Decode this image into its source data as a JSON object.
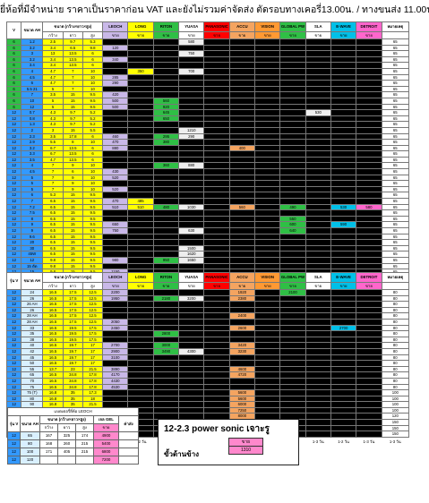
{
  "title": "ยี่ห้อที่มีจำหน่าย  ราคาเป็นราคาก่อน VAT และยังไม่รวมค่าจัดส่ง  ตัดรอบทางเคอรี่13.00น. / ทางขนส่ง 11.00น. ของทุกวัน",
  "brands": [
    "LEOCH",
    "LONG",
    "RITON",
    "YUASA",
    "PANASONIC",
    "ACCU",
    "VISION",
    "GLOBAL PW",
    "SLA",
    "E-WAVE",
    "DETROIT",
    "หมายเหตุ"
  ],
  "brand_colors": [
    "#c9b8e8",
    "#ffff00",
    "#2fbf45",
    "#ffffff",
    "#ff0000",
    "#f4a460",
    "#ff9933",
    "#2fbf45",
    "#ffffff",
    "#00c0e8",
    "#ff66cc",
    "#ffffff"
  ],
  "section1": {
    "head_v": "V",
    "head_ah": "ขนาด AH",
    "head_dim": "ขนาด (กว้าง×ยาว×สูง)",
    "head_price": "ราคา/ลูก",
    "sub_labels": [
      "กว้าง",
      "ยาว",
      "สูง"
    ],
    "unit_label": "ขาย",
    "rows": [
      [
        "6",
        "1.2",
        "2.5",
        "9.7",
        "5.3",
        "",
        "",
        "",
        "580",
        "",
        "",
        "",
        "",
        "",
        "",
        "",
        "65"
      ],
      [
        "6",
        "3.2",
        "3.4",
        "6.5",
        "9.8",
        "120",
        "",
        "",
        "",
        "",
        "",
        "",
        "",
        "",
        "",
        "",
        "65"
      ],
      [
        "6",
        "3",
        "13",
        "13.5",
        "6",
        "",
        "",
        "",
        "750",
        "",
        "",
        "",
        "",
        "",
        "",
        "",
        "65"
      ],
      [
        "6",
        "3.2",
        "3.4",
        "13.5",
        "6",
        "340",
        "",
        "",
        "",
        "",
        "",
        "",
        "",
        "",
        "",
        "",
        "65"
      ],
      [
        "6",
        "3.4",
        "3.4",
        "13.5",
        "6",
        "",
        "",
        "",
        "",
        "",
        "",
        "",
        "",
        "",
        "",
        "",
        "65"
      ],
      [
        "6",
        "4",
        "4.7",
        "7",
        "10",
        "",
        "350",
        "",
        "700",
        "",
        "",
        "",
        "",
        "",
        "",
        "",
        "65"
      ],
      [
        "6",
        "4.5",
        "4.7",
        "7",
        "10",
        "285",
        "",
        "",
        "",
        "",
        "",
        "",
        "",
        "",
        "",
        "",
        "65"
      ],
      [
        "6",
        "6",
        "4.7",
        "7",
        "10",
        "290",
        "",
        "",
        "",
        "",
        "",
        "",
        "",
        "",
        "",
        "",
        "65"
      ],
      [
        "6",
        "5.5 21",
        "5",
        "7",
        "10",
        "",
        "",
        "",
        "",
        "",
        "",
        "",
        "",
        "",
        "",
        "",
        "65"
      ],
      [
        "6",
        "7",
        "3.5",
        "15",
        "9.5",
        "420",
        "",
        "",
        "",
        "",
        "",
        "",
        "",
        "",
        "",
        "",
        "65"
      ],
      [
        "6",
        "10",
        "5",
        "15",
        "9.5",
        "500",
        "",
        "560",
        "",
        "",
        "",
        "",
        "",
        "",
        "",
        "",
        "65"
      ],
      [
        "6",
        "12",
        "5",
        "15",
        "9.5",
        "500",
        "",
        "920",
        "",
        "",
        "",
        "",
        "",
        "",
        "",
        "",
        "65"
      ],
      [
        "12",
        "0.7",
        "4.3",
        "9.7",
        "5.2",
        "",
        "",
        "645",
        "",
        "",
        "",
        "",
        "",
        "530",
        "",
        "",
        "65"
      ],
      [
        "12",
        "0.8",
        "4.3",
        "9.7",
        "5.2",
        "",
        "",
        "650",
        "",
        "",
        "",
        "",
        "",
        "",
        "",
        "",
        "65"
      ],
      [
        "12",
        "1.3",
        "4.3",
        "9.7",
        "5.2",
        "",
        "",
        "",
        "",
        "",
        "",
        "",
        "",
        "",
        "",
        "",
        "65"
      ],
      [
        "12",
        "2",
        "3",
        "15",
        "5.5",
        "",
        "",
        "",
        "1210",
        "",
        "",
        "",
        "",
        "",
        "",
        "",
        "65"
      ],
      [
        "12",
        "2.3",
        "3.5",
        "17.8",
        "6",
        "460",
        "",
        "295",
        "290",
        "",
        "",
        "",
        "",
        "",
        "",
        "",
        "65"
      ],
      [
        "12",
        "2.9",
        "5.5",
        "8",
        "10",
        "470",
        "",
        "380",
        "",
        "",
        "",
        "",
        "",
        "",
        "",
        "",
        "65"
      ],
      [
        "12",
        "3.2",
        "6.7",
        "13.5",
        "6",
        "880",
        "",
        "",
        "",
        "",
        "400",
        "",
        "",
        "",
        "",
        "",
        "65"
      ],
      [
        "12",
        "3.3",
        "6.7",
        "13.5",
        "6",
        "",
        "",
        "",
        "",
        "",
        "",
        "",
        "",
        "",
        "",
        "",
        "65"
      ],
      [
        "12",
        "3.5",
        "4.7",
        "13.5",
        "6",
        "",
        "",
        "",
        "",
        "",
        "",
        "",
        "",
        "",
        "",
        "",
        "65"
      ],
      [
        "12",
        "4",
        "7",
        "9",
        "10",
        "",
        "",
        "360",
        "880",
        "",
        "",
        "",
        "",
        "",
        "",
        "",
        "65"
      ],
      [
        "12",
        "4.5",
        "7",
        "6",
        "10",
        "430",
        "",
        "",
        "",
        "",
        "",
        "",
        "",
        "",
        "",
        "",
        "65"
      ],
      [
        "12",
        "5",
        "7",
        "9",
        "10",
        "520",
        "",
        "",
        "",
        "",
        "",
        "",
        "",
        "",
        "",
        "",
        "65"
      ],
      [
        "12",
        "5",
        "7",
        "9",
        "10",
        "",
        "",
        "",
        "",
        "",
        "",
        "",
        "",
        "",
        "",
        "",
        "65"
      ],
      [
        "12",
        "5",
        "7",
        "9",
        "10",
        "520",
        "",
        "",
        "",
        "",
        "",
        "",
        "",
        "",
        "",
        "",
        "65"
      ],
      [
        "12",
        "6",
        "5.3",
        "15",
        "9.5",
        "",
        "",
        "",
        "",
        "",
        "",
        "",
        "",
        "",
        "",
        "",
        "65"
      ],
      [
        "12",
        "7",
        "6.5",
        "15",
        "9.5",
        "470",
        "485",
        "",
        "",
        "",
        "",
        "",
        "",
        "",
        "",
        "",
        "65"
      ],
      [
        "12",
        "7.2",
        "6.5",
        "15",
        "9.5",
        "510",
        "510",
        "480",
        "1030",
        "",
        "560",
        "",
        "490",
        "",
        "530",
        "580",
        "65"
      ],
      [
        "12",
        "7.5",
        "6.5",
        "15",
        "9.5",
        "",
        "",
        "",
        "",
        "",
        "",
        "",
        "",
        "",
        "",
        "",
        "65"
      ],
      [
        "12",
        "8",
        "6.5",
        "15",
        "9.5",
        "",
        "",
        "",
        "",
        "",
        "",
        "",
        "550",
        "",
        "",
        "",
        "65"
      ],
      [
        "12",
        "9",
        "6.5",
        "15",
        "9.5",
        "650",
        "",
        "",
        "",
        "",
        "",
        "",
        "600",
        "",
        "590",
        "",
        "65"
      ],
      [
        "12",
        "9",
        "6.5",
        "15",
        "9.5",
        "750",
        "",
        "",
        "630",
        "",
        "",
        "",
        "640",
        "",
        "",
        "",
        "65"
      ],
      [
        "12",
        "9.6",
        "6.5",
        "15",
        "9.5",
        "",
        "",
        "",
        "",
        "",
        "",
        "",
        "",
        "",
        "",
        "",
        "65"
      ],
      [
        "12",
        "20",
        "6.5",
        "15",
        "9.5",
        "",
        "",
        "",
        "",
        "",
        "",
        "",
        "",
        "",
        "",
        "",
        "65"
      ],
      [
        "12",
        "30",
        "6.5",
        "15",
        "9.5",
        "",
        "",
        "",
        "1500",
        "",
        "",
        "",
        "",
        "",
        "",
        "",
        "65"
      ],
      [
        "12",
        "45W",
        "6.5",
        "15",
        "9.5",
        "",
        "",
        "",
        "1620",
        "",
        "",
        "",
        "",
        "",
        "",
        "",
        "65"
      ],
      [
        "12",
        "12",
        "9.8",
        "15",
        "9.5",
        "980",
        "",
        "950",
        "1650",
        "",
        "",
        "",
        "",
        "",
        "",
        "",
        "65"
      ],
      [
        "12",
        "15 ตัด",
        "9.8",
        "15",
        "9.5",
        "",
        "",
        "",
        "",
        "",
        "",
        "",
        "",
        "",
        "",
        "",
        "65"
      ],
      [
        "12",
        "15",
        "9.8",
        "15",
        "9.5",
        "1150",
        "",
        "",
        "",
        "",
        "",
        "",
        "",
        "",
        "",
        "",
        "65"
      ],
      [
        "12",
        "17",
        "7.5",
        "18",
        "16.7",
        "1220",
        "",
        "",
        "",
        "",
        "1380",
        "",
        "",
        "",
        "",
        "",
        "65"
      ],
      [
        "12",
        "17 (2.3)",
        "7.5",
        "18",
        "16.7",
        "1350",
        "",
        "",
        "",
        "",
        "",
        "",
        "",
        "",
        "",
        "",
        "65"
      ],
      [
        "12",
        "18",
        "7.5",
        "18",
        "16.7",
        "1270",
        "1290",
        "",
        "",
        "",
        "",
        "",
        "1400",
        "",
        "",
        "",
        "65"
      ],
      [
        "12",
        "20",
        "7.5",
        "18",
        "16.7",
        "1250",
        "",
        "",
        "",
        "",
        "",
        "",
        "1480",
        "",
        "",
        "",
        "65"
      ],
      [
        "12",
        "22",
        "7.5",
        "18",
        "16.7",
        "",
        "",
        "",
        "",
        "",
        "",
        "",
        "1590",
        "",
        "",
        "",
        "65"
      ],
      [
        "12",
        "24",
        "7.5",
        "18",
        "16.7",
        "",
        "",
        "",
        "",
        "",
        "",
        "",
        "",
        "",
        "",
        "",
        "65"
      ]
    ]
  },
  "section2": {
    "head_v": "รุ่น V",
    "head_ah": "ขนาด AH",
    "head_dim": "ขนาด (กว้าง×ยาว×สูง)",
    "rows": [
      [
        "12",
        "24",
        "16.5",
        "17.5",
        "12.5",
        "2200",
        "",
        "",
        "",
        "",
        "1920",
        "",
        "2100",
        "",
        "",
        "",
        "80"
      ],
      [
        "12",
        "26",
        "16.5",
        "17.5",
        "12.5",
        "1950",
        "",
        "2180",
        "3200",
        "",
        "2380",
        "",
        "",
        "",
        "",
        "",
        "80"
      ],
      [
        "12",
        "26 AH",
        "16.5",
        "17.5",
        "12.5",
        "",
        "",
        "",
        "",
        "",
        "",
        "",
        "",
        "",
        "",
        "",
        "80"
      ],
      [
        "12",
        "26",
        "16.5",
        "17.5",
        "12.5",
        "",
        "",
        "",
        "",
        "",
        "",
        "",
        "",
        "",
        "",
        "",
        "80"
      ],
      [
        "12",
        "28 AH",
        "16.5",
        "17.5",
        "12.5",
        "",
        "",
        "",
        "",
        "",
        "2400",
        "",
        "",
        "",
        "",
        "",
        "80"
      ],
      [
        "12",
        "28 AH",
        "16.5",
        "17.5",
        "12.5",
        "2050",
        "",
        "",
        "",
        "",
        "",
        "",
        "",
        "",
        "",
        "",
        "80"
      ],
      [
        "12",
        "33",
        "16.5",
        "19.5",
        "17.5",
        "2450",
        "",
        "",
        "",
        "",
        "2600",
        "",
        "",
        "",
        "2700",
        "",
        "80"
      ],
      [
        "12",
        "35",
        "16.5",
        "19.5",
        "17.5",
        "",
        "",
        "2800",
        "",
        "",
        "",
        "",
        "",
        "",
        "",
        "",
        "80"
      ],
      [
        "12",
        "38",
        "16.5",
        "19.5",
        "17.5",
        "",
        "",
        "",
        "",
        "",
        "",
        "",
        "",
        "",
        "",
        "",
        "80"
      ],
      [
        "12",
        "40",
        "16.5",
        "19.7",
        "17",
        "2700",
        "",
        "3000",
        "",
        "",
        "3420",
        "",
        "",
        "",
        "",
        "",
        "80"
      ],
      [
        "12",
        "42",
        "16.5",
        "19.7",
        "17",
        "2900",
        "",
        "3490",
        "4300",
        "",
        "3230",
        "",
        "",
        "",
        "",
        "",
        "80"
      ],
      [
        "12",
        "45",
        "16.5",
        "19.7",
        "17",
        "3100",
        "",
        "",
        "",
        "",
        "",
        "",
        "",
        "",
        "",
        "",
        "80"
      ],
      [
        "12",
        "50",
        "16.5",
        "19.7",
        "17",
        "",
        "",
        "",
        "",
        "",
        "",
        "",
        "",
        "",
        "",
        "",
        "80"
      ],
      [
        "12",
        "55",
        "13.7",
        "23",
        "21.5",
        "3890",
        "",
        "",
        "",
        "",
        "4600",
        "",
        "",
        "",
        "",
        "",
        "80"
      ],
      [
        "12",
        "65",
        "16.5",
        "34.8",
        "17.8",
        "4170",
        "",
        "",
        "",
        "",
        "4720",
        "",
        "",
        "",
        "",
        "",
        "80"
      ],
      [
        "12",
        "70",
        "16.5",
        "34.8",
        "17.8",
        "4430",
        "",
        "",
        "",
        "",
        "",
        "",
        "",
        "",
        "",
        "",
        "80"
      ],
      [
        "12",
        "75",
        "16.5",
        "34.8",
        "17.8",
        "4530",
        "",
        "",
        "",
        "",
        "",
        "",
        "",
        "",
        "",
        "",
        "80"
      ],
      [
        "12",
        "75 (T)",
        "16.8",
        "35",
        "17.3",
        "",
        "",
        "",
        "",
        "",
        "5600",
        "",
        "",
        "",
        "",
        "",
        "100"
      ],
      [
        "12",
        "80",
        "16.8",
        "35",
        "18",
        "",
        "",
        "",
        "",
        "",
        "5600",
        "",
        "",
        "",
        "",
        "",
        "100"
      ],
      [
        "12",
        "90",
        "16.8",
        "35",
        "21.5",
        "",
        "",
        "",
        "",
        "",
        "6000",
        "",
        "",
        "",
        "",
        "",
        "100"
      ],
      [
        "12",
        "100",
        "17.1",
        "41",
        "21.1",
        "7150",
        "",
        "",
        "",
        "",
        "7250",
        "",
        "",
        "",
        "",
        "",
        "100"
      ],
      [
        "12",
        "120",
        "17.5",
        "41",
        "21.5",
        "",
        "",
        "",
        "",
        "",
        "8000",
        "",
        "",
        "",
        "",
        "",
        "120"
      ],
      [
        "12",
        "150",
        "17.1",
        "48",
        "24",
        "8470",
        "",
        "",
        "",
        "",
        "",
        "",
        "",
        "",
        "",
        "",
        "150"
      ],
      [
        "12",
        "200",
        "24",
        "52",
        "22",
        "12900",
        "",
        "",
        "",
        "",
        "",
        "",
        "",
        "",
        "",
        "",
        "150"
      ],
      [
        "12",
        "230",
        "24",
        "52",
        "20.5",
        "",
        "",
        "",
        "",
        "14500",
        "",
        "",
        "",
        "",
        "",
        "",
        "150"
      ]
    ]
  },
  "footer": {
    "label": "ระยะเวลาส่งของ และ ผลิต",
    "times": [
      "1-2 วัน",
      "1-2 วัน",
      "1-2 วัน",
      "1-2 วัน",
      "1-3 วัน",
      "1-3 วัน",
      "1-3 วัน",
      "1-3 วัน",
      "1-3 วัน",
      "1-2 วัน",
      "1-3 วัน",
      "1-3 วัน"
    ]
  },
  "extra": {
    "title": "แบตเตอรี่ยี่ห้อ LEOCH",
    "col_v": "รุ่น V",
    "col_ah": "ขนาด AH",
    "col_dim": "ขนาด (กว้าง×ยาว×สูง)",
    "col_gel": "เจล GEL",
    "col_price": "ราคา",
    "col_ship": "ค่าส่ง",
    "sub": [
      "กว้าง",
      "ยาว",
      "สูง",
      "ขาย"
    ],
    "rows": [
      [
        "12",
        "65",
        "167",
        "325",
        "174",
        "4900",
        ""
      ],
      [
        "12",
        "80",
        "168",
        "260",
        "215",
        "5400",
        ""
      ],
      [
        "12",
        "100",
        "171",
        "405",
        "215",
        "6800",
        ""
      ],
      [
        "12",
        "120",
        "",
        "",
        "",
        "7200",
        ""
      ]
    ]
  },
  "ps": {
    "title": "12-2.3 power sonic เจาะรู",
    "price_head": "ขาย",
    "price": "1310",
    "note": "ขั้วด้านข้าง"
  }
}
